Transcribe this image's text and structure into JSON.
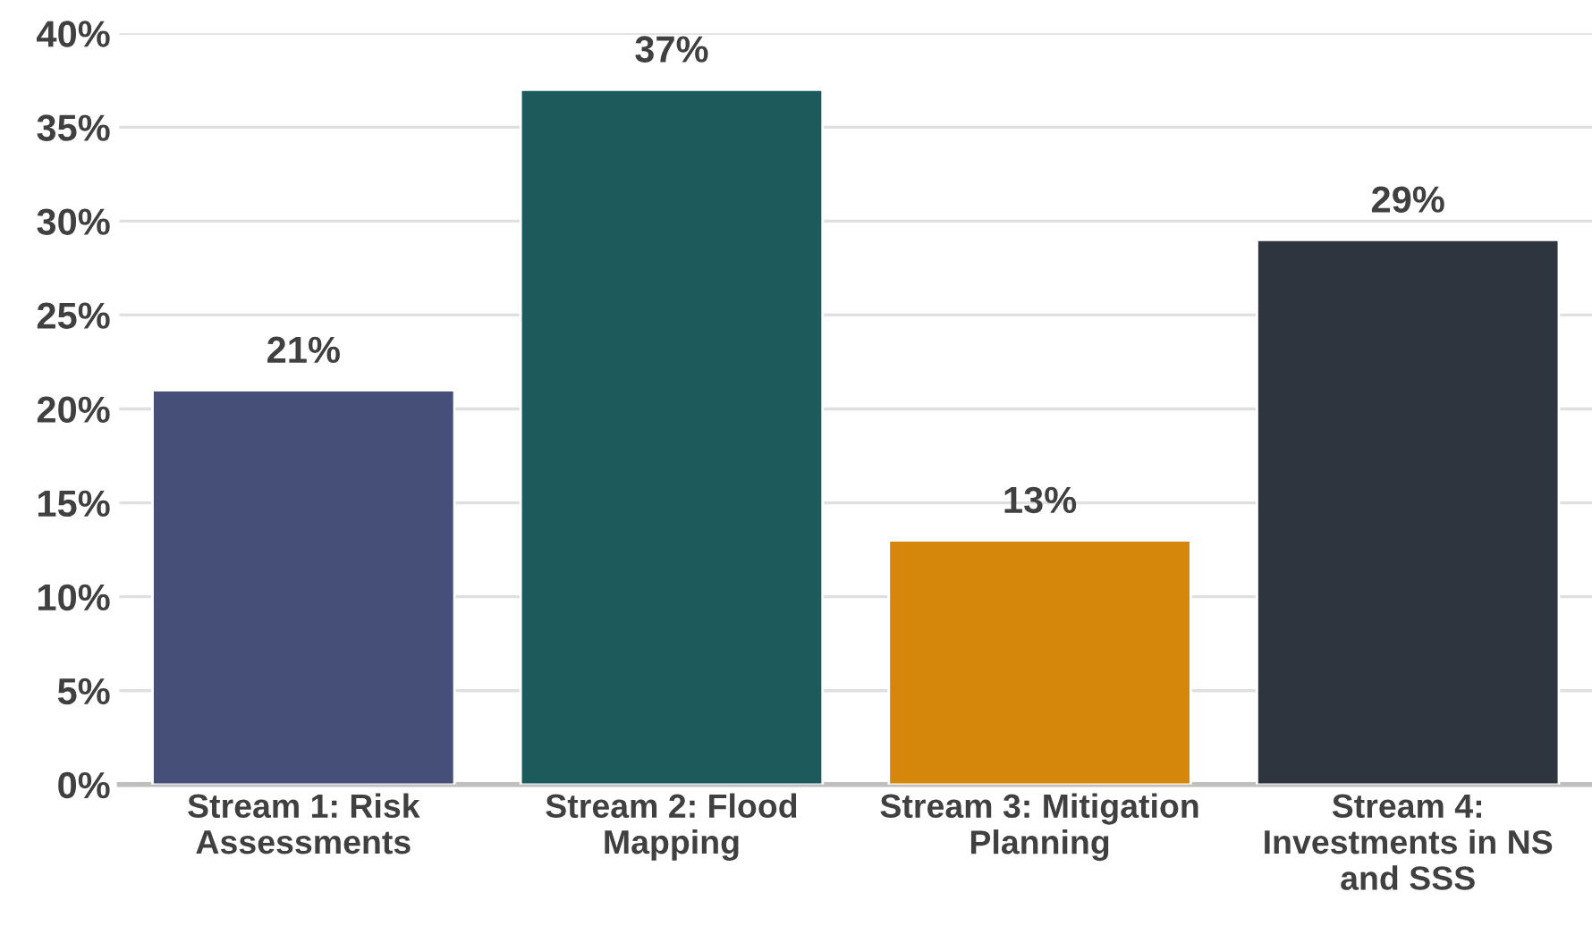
{
  "chart_data": {
    "type": "bar",
    "categories": [
      "Stream 1: Risk\nAssessments",
      "Stream 2: Flood\nMapping",
      "Stream 3: Mitigation\nPlanning",
      "Stream 4:\nInvestments in NS\nand SSS"
    ],
    "values": [
      21,
      37,
      13,
      29
    ],
    "colors": [
      "#454f78",
      "#1d5a5c",
      "#d5870b",
      "#2e353e"
    ],
    "value_labels": [
      "21%",
      "37%",
      "13%",
      "29%"
    ],
    "ylim": [
      0,
      40
    ],
    "yticks": [
      {
        "value": 0,
        "label": "0%"
      },
      {
        "value": 5,
        "label": "5%"
      },
      {
        "value": 10,
        "label": "10%"
      },
      {
        "value": 15,
        "label": "15%"
      },
      {
        "value": 20,
        "label": "20%"
      },
      {
        "value": 25,
        "label": "25%"
      },
      {
        "value": 30,
        "label": "30%"
      },
      {
        "value": 35,
        "label": "35%"
      },
      {
        "value": 40,
        "label": "40%"
      }
    ],
    "grid": "y"
  }
}
